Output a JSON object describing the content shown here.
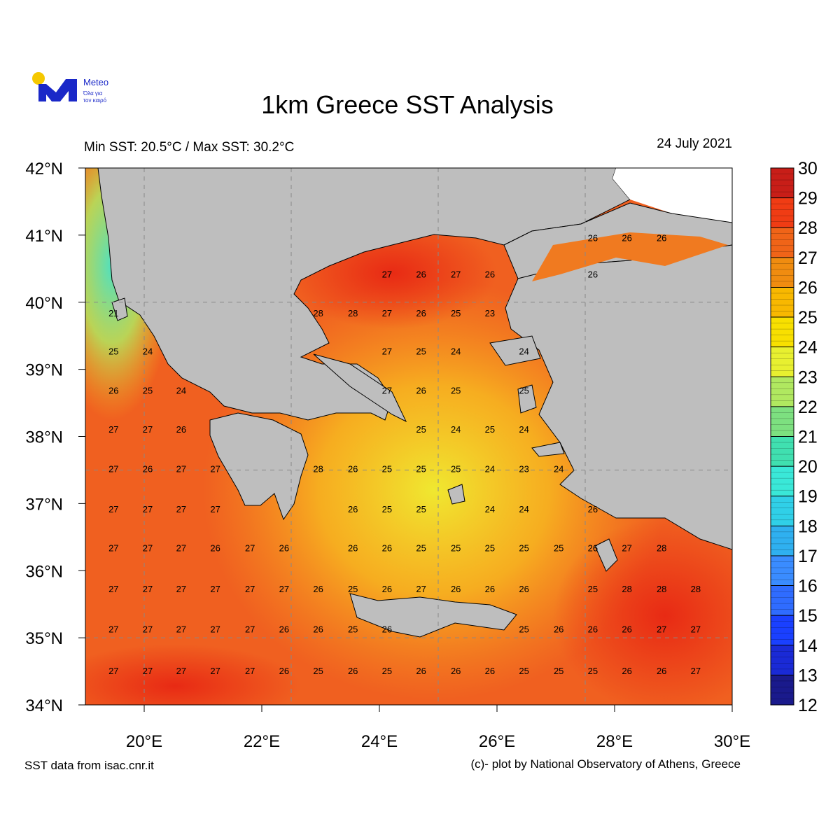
{
  "logo": {
    "name": "Meteo",
    "tagline": [
      "Όλα για",
      "τον καιρό"
    ]
  },
  "title": "1km Greece SST Analysis",
  "subtitle": "Min SST: 20.5°C / Max SST: 30.2°C",
  "date": "24 July 2021",
  "map": {
    "xlim": [
      19,
      30
    ],
    "ylim": [
      34,
      42
    ],
    "xticks": [
      {
        "value": 20,
        "label": "20°E"
      },
      {
        "value": 22,
        "label": "22°E"
      },
      {
        "value": 24,
        "label": "24°E"
      },
      {
        "value": 26,
        "label": "26°E"
      },
      {
        "value": 28,
        "label": "28°E"
      },
      {
        "value": 30,
        "label": "30°E"
      }
    ],
    "yticks": [
      {
        "value": 34,
        "label": "34°N"
      },
      {
        "value": 35,
        "label": "35°N"
      },
      {
        "value": 36,
        "label": "36°N"
      },
      {
        "value": 37,
        "label": "37°N"
      },
      {
        "value": 38,
        "label": "38°N"
      },
      {
        "value": 39,
        "label": "39°N"
      },
      {
        "value": 40,
        "label": "40°N"
      },
      {
        "value": 41,
        "label": "41°N"
      },
      {
        "value": 42,
        "label": "42°N"
      }
    ],
    "gridlines": {
      "lon": [
        20,
        22.5,
        25,
        27.5
      ],
      "lat": [
        35,
        37.5,
        40
      ]
    },
    "sst_labels": {
      "lons": [
        19.48,
        20.06,
        20.63,
        21.21,
        21.8,
        22.38,
        22.96,
        23.55,
        24.13,
        24.71,
        25.3,
        25.88,
        26.46,
        27.05,
        27.63,
        28.21,
        28.8,
        29.38
      ],
      "lats": [
        40.96,
        40.42,
        39.84,
        39.27,
        38.69,
        38.11,
        37.52,
        36.92,
        36.34,
        35.73,
        35.13,
        34.51
      ],
      "values": [
        [
          null,
          null,
          null,
          null,
          null,
          null,
          null,
          null,
          null,
          null,
          null,
          null,
          null,
          null,
          26,
          26,
          26,
          null
        ],
        [
          null,
          null,
          null,
          null,
          null,
          null,
          null,
          null,
          27,
          26,
          27,
          26,
          null,
          null,
          26,
          null,
          null,
          null
        ],
        [
          21,
          null,
          null,
          null,
          null,
          null,
          28,
          28,
          27,
          26,
          25,
          23,
          null,
          null,
          null,
          null,
          null,
          null
        ],
        [
          25,
          24,
          null,
          null,
          null,
          null,
          null,
          null,
          27,
          25,
          24,
          null,
          24,
          null,
          null,
          null,
          null,
          null
        ],
        [
          26,
          25,
          24,
          null,
          null,
          null,
          null,
          null,
          27,
          26,
          25,
          null,
          25,
          null,
          null,
          null,
          null,
          null
        ],
        [
          27,
          27,
          26,
          null,
          null,
          null,
          null,
          null,
          null,
          25,
          24,
          25,
          24,
          null,
          null,
          null,
          null,
          null
        ],
        [
          27,
          26,
          27,
          27,
          null,
          null,
          28,
          26,
          25,
          25,
          25,
          24,
          23,
          24,
          null,
          null,
          null,
          null
        ],
        [
          27,
          27,
          27,
          27,
          null,
          null,
          null,
          26,
          25,
          25,
          null,
          24,
          24,
          null,
          26,
          null,
          null,
          null
        ],
        [
          27,
          27,
          27,
          26,
          27,
          26,
          null,
          26,
          26,
          25,
          25,
          25,
          25,
          25,
          26,
          27,
          28,
          null
        ],
        [
          27,
          27,
          27,
          27,
          27,
          27,
          26,
          25,
          26,
          27,
          26,
          26,
          26,
          null,
          25,
          28,
          28,
          28
        ],
        [
          27,
          27,
          27,
          27,
          27,
          26,
          26,
          25,
          26,
          null,
          null,
          null,
          25,
          26,
          26,
          26,
          27,
          27
        ],
        [
          27,
          27,
          27,
          27,
          27,
          26,
          25,
          26,
          25,
          26,
          26,
          26,
          25,
          25,
          25,
          26,
          26,
          27
        ]
      ]
    }
  },
  "colorbar": {
    "range": [
      12,
      30
    ],
    "ticks": [
      12,
      13,
      14,
      15,
      16,
      17,
      18,
      19,
      20,
      21,
      22,
      23,
      24,
      25,
      26,
      27,
      28,
      29,
      30
    ],
    "colors": [
      "#1a1a8c",
      "#1a2ad6",
      "#1a40ff",
      "#2f6cff",
      "#3a8cff",
      "#2fb0f0",
      "#30d0e8",
      "#3ae8d8",
      "#40e0b0",
      "#7de080",
      "#b0e860",
      "#e8f030",
      "#f8e000",
      "#f8b800",
      "#f08c10",
      "#f06418",
      "#f03c14",
      "#c81e18"
    ]
  },
  "footer": {
    "left": "SST data from isac.cnr.it",
    "right": "(c)- plot by National Observatory of Athens, Greece"
  }
}
